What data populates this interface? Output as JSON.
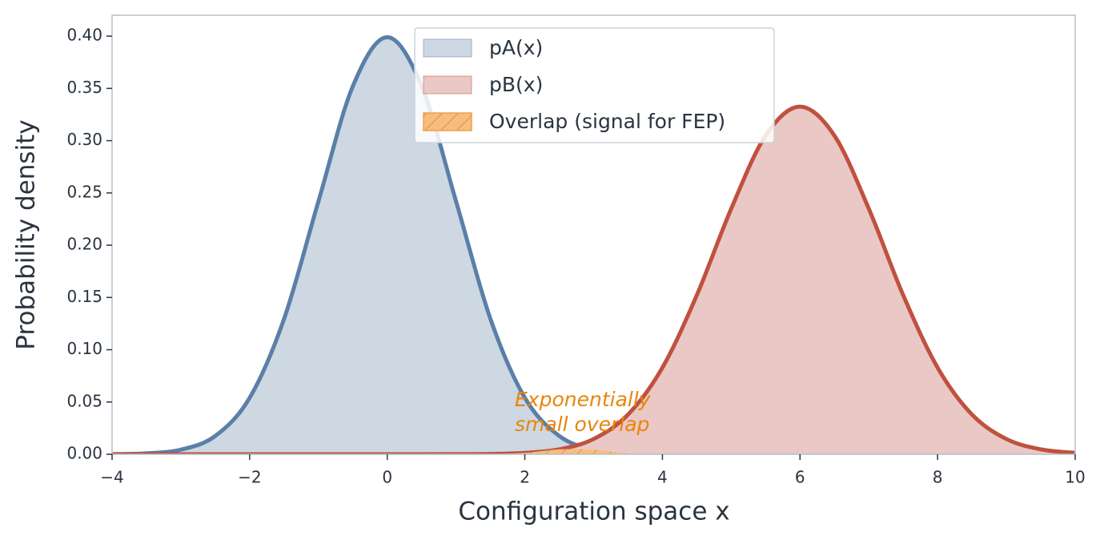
{
  "chart_data": {
    "type": "area",
    "xlabel": "Configuration space x",
    "ylabel": "Probability density",
    "x": [
      -4,
      -3.5,
      -3,
      -2.5,
      -2,
      -1.5,
      -1,
      -0.5,
      0,
      0.5,
      1,
      1.5,
      2,
      2.5,
      3,
      3.5,
      4,
      4.5,
      5,
      5.5,
      6,
      6.5,
      7,
      7.5,
      8,
      8.5,
      9,
      9.5,
      10
    ],
    "series": [
      {
        "name": "pA(x)",
        "color": "#5a7fa8",
        "fill": "#cdd8e2",
        "values": [
          0.0001,
          0.0009,
          0.0044,
          0.0175,
          0.054,
          0.1295,
          0.242,
          0.3521,
          0.3989,
          0.3521,
          0.242,
          0.1295,
          0.054,
          0.0175,
          0.0044,
          0.0009,
          0.0001,
          0,
          0,
          0,
          0,
          0,
          0,
          0,
          0,
          0,
          0,
          0,
          0
        ]
      },
      {
        "name": "pB(x)",
        "color": "#c0513f",
        "fill": "#eac8c5",
        "values": [
          0,
          0,
          0,
          0,
          0,
          0,
          0,
          0,
          0,
          0,
          0.0001,
          0.0003,
          0.0013,
          0.0047,
          0.0146,
          0.038,
          0.0829,
          0.1522,
          0.2349,
          0.3048,
          0.3325,
          0.3048,
          0.2349,
          0.1522,
          0.0829,
          0.038,
          0.0146,
          0.0047,
          0.0013
        ]
      },
      {
        "name": "Overlap (signal for FEP)",
        "color": "#f0a04b",
        "fill": "#f5bd7e",
        "hatch": true,
        "values": [
          0,
          0,
          0,
          0,
          0,
          0,
          0,
          0,
          0,
          0,
          0.0001,
          0.0003,
          0.0013,
          0.0047,
          0.0044,
          0.0009,
          0.0001,
          0,
          0,
          0,
          0,
          0,
          0,
          0,
          0,
          0,
          0,
          0,
          0
        ]
      }
    ],
    "annotation": [
      "Exponentially",
      "small overlap"
    ],
    "annotation_color": "#e8850c",
    "xlim": [
      -4,
      10
    ],
    "xticks": [
      {
        "value": -4,
        "label": "−4"
      },
      {
        "value": -2,
        "label": "−2"
      },
      0,
      2,
      4,
      6,
      8,
      10
    ],
    "ylim": [
      0,
      0.42
    ],
    "yticks": [
      {
        "value": 0,
        "label": "0.00"
      },
      {
        "value": 0.05,
        "label": "0.05"
      },
      {
        "value": 0.1,
        "label": "0.10"
      },
      {
        "value": 0.15,
        "label": "0.15"
      },
      {
        "value": 0.2,
        "label": "0.20"
      },
      {
        "value": 0.25,
        "label": "0.25"
      },
      {
        "value": 0.3,
        "label": "0.30"
      },
      {
        "value": 0.35,
        "label": "0.35"
      },
      {
        "value": 0.4,
        "label": "0.40"
      }
    ],
    "legend": "upper center"
  }
}
